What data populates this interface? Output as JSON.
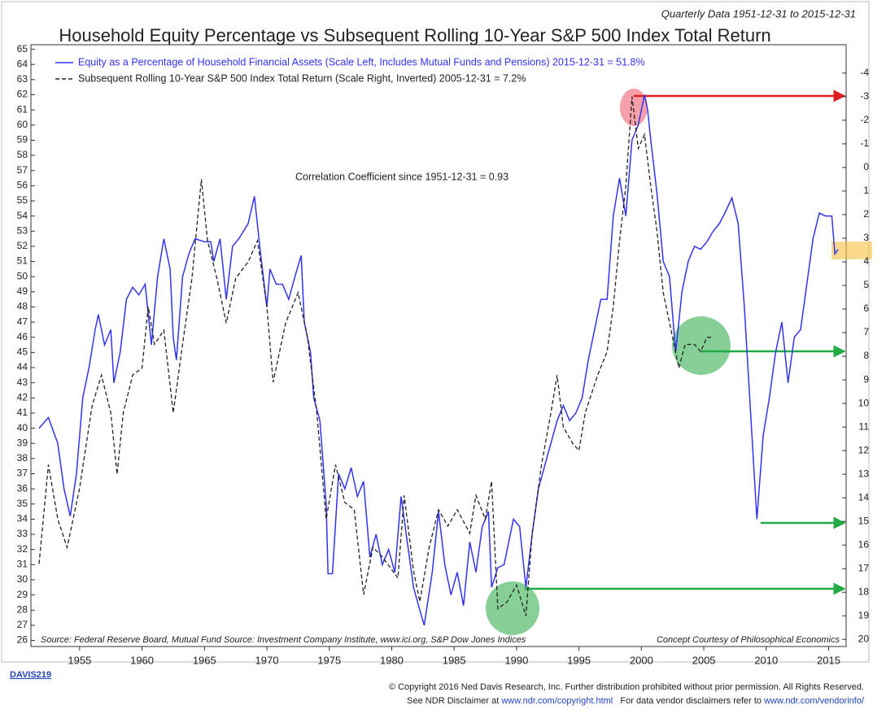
{
  "chart_data": {
    "type": "line",
    "subtitle": "Quarterly Data 1951-12-31 to 2015-12-31",
    "title": "Household Equity Percentage vs Subsequent Rolling 10-Year S&P 500 Index Total Return",
    "annotations": [
      "Correlation Coefficient since 1951-12-31 = 0.93"
    ],
    "source": "Source:  Federal Reserve Board, Mutual Fund Source: Investment Company Institute, www.ici.org, S&P Dow Jones Indices",
    "credit": "Concept Courtesy of Philosophical Economics",
    "chart_id": "DAVIS219",
    "copyright": [
      "© Copyright 2016 Ned Davis Research, Inc. Further distribution prohibited without prior permission. All Rights Reserved.",
      "See NDR Disclaimer at ",
      "www.ndr.com/copyright.html",
      "   For data vendor disclaimers refer to ",
      "www.ndr.com/vendorinfo/"
    ],
    "xlim": [
      1951.1,
      2016.4
    ],
    "xticks": [
      1955,
      1960,
      1965,
      1970,
      1975,
      1980,
      1985,
      1990,
      1995,
      2000,
      2005,
      2010,
      2015
    ],
    "ylim": [
      25.6,
      65.3
    ],
    "yticks": [
      26,
      27,
      28,
      29,
      30,
      31,
      32,
      33,
      34,
      35,
      36,
      37,
      38,
      39,
      40,
      41,
      42,
      43,
      44,
      45,
      46,
      47,
      48,
      49,
      50,
      51,
      52,
      53,
      54,
      55,
      56,
      57,
      58,
      59,
      60,
      61,
      62,
      63,
      64,
      65
    ],
    "y2lim": [
      20.3,
      -5.2
    ],
    "y2ticks": [
      -4,
      -3,
      -2,
      -1,
      0,
      1,
      2,
      3,
      4,
      5,
      6,
      7,
      8,
      9,
      10,
      11,
      12,
      13,
      14,
      15,
      16,
      17,
      18,
      19,
      20
    ],
    "series": [
      {
        "name": "Equity as a Percentage of Household Financial Assets (Scale Left, Includes Mutual Funds and Pensions) 2015-12-31 = 51.8%",
        "color": "#3333ee",
        "axis": "y",
        "x": [
          1951.75,
          1952.5,
          1953.25,
          1953.75,
          1954.25,
          1954.75,
          1955.25,
          1955.75,
          1956.25,
          1956.5,
          1957,
          1957.5,
          1957.75,
          1958.25,
          1958.75,
          1959.25,
          1959.75,
          1960.25,
          1960.75,
          1961.25,
          1961.75,
          1962.25,
          1962.5,
          1962.75,
          1963.25,
          1963.75,
          1964.25,
          1965,
          1965.5,
          1965.75,
          1966.25,
          1966.75,
          1967.25,
          1967.75,
          1968.5,
          1969,
          1969.5,
          1970,
          1970.25,
          1970.75,
          1971.25,
          1971.75,
          1972.25,
          1972.75,
          1973,
          1973.5,
          1973.75,
          1974.25,
          1974.75,
          1974.9,
          1975.25,
          1975.75,
          1976.25,
          1976.75,
          1977.25,
          1977.75,
          1978.25,
          1978.75,
          1979.25,
          1979.75,
          1980.25,
          1980.75,
          1981.25,
          1981.75,
          1982.25,
          1982.6,
          1983.25,
          1983.75,
          1984.25,
          1984.75,
          1985.25,
          1985.75,
          1986.25,
          1986.75,
          1987.25,
          1987.75,
          1988,
          1988.5,
          1989,
          1989.75,
          1990.25,
          1990.75,
          1991.25,
          1991.75,
          1992.25,
          1992.75,
          1993.25,
          1993.75,
          1994.25,
          1994.75,
          1995.25,
          1995.75,
          1996.25,
          1996.75,
          1997.25,
          1997.75,
          1998.25,
          1998.75,
          1999.25,
          1999.75,
          2000.25,
          2000.5,
          2000.75,
          2001.25,
          2001.75,
          2002.25,
          2002.75,
          2003.25,
          2003.75,
          2004.25,
          2004.75,
          2005.25,
          2005.75,
          2006.25,
          2006.75,
          2007.25,
          2007.75,
          2008.25,
          2008.75,
          2009.25,
          2009.75,
          2010.25,
          2010.75,
          2011.25,
          2011.75,
          2012.25,
          2012.75,
          2013.25,
          2013.75,
          2014.25,
          2014.75,
          2015.25,
          2015.5,
          2015.75
        ],
        "values": [
          40,
          40.7,
          39,
          36,
          34.2,
          37,
          42,
          44,
          46.5,
          47.5,
          45.5,
          46.5,
          43,
          45,
          48.5,
          49.3,
          48.8,
          49.5,
          45.5,
          50,
          52.5,
          50.5,
          46,
          44.5,
          50,
          51.5,
          52.5,
          52.3,
          52.3,
          51,
          52.5,
          48.5,
          52,
          52.5,
          53.5,
          55.3,
          51.5,
          48,
          50.5,
          49.5,
          49.5,
          48.5,
          50,
          51.4,
          47,
          45,
          42,
          40.5,
          35,
          30.4,
          30.4,
          37,
          36,
          37.4,
          35.5,
          36.5,
          31.5,
          33,
          31,
          32,
          30.5,
          35.5,
          32.5,
          29.5,
          28,
          27,
          30.5,
          34.5,
          31,
          29,
          30.5,
          28.3,
          32.5,
          30.5,
          33.5,
          34.5,
          29.5,
          30.8,
          31,
          34,
          33.5,
          29.5,
          33,
          36,
          37.5,
          39,
          40.5,
          41.5,
          40.5,
          41,
          42,
          44.5,
          46.5,
          48.5,
          48.5,
          54,
          56.5,
          54,
          59,
          60,
          62,
          61,
          59,
          55.5,
          51,
          50,
          45,
          49,
          51,
          52,
          51.8,
          52.3,
          53,
          53.5,
          54.3,
          55.2,
          53.5,
          48,
          41,
          34,
          39.5,
          42,
          45,
          47,
          43,
          46,
          46.5,
          49.5,
          52.5,
          54.2,
          54,
          54,
          51.5,
          51.8
        ]
      },
      {
        "name": "Subsequent Rolling 10-Year S&P 500 Index Total Return (Scale Right, Inverted) 2005-12-31 = 7.2%",
        "color": "#222222",
        "axis": "y2",
        "dashed": true,
        "x": [
          1951.75,
          1952.5,
          1953.25,
          1954,
          1955,
          1956,
          1956.75,
          1957.5,
          1958,
          1958.5,
          1959.25,
          1960,
          1960.5,
          1961,
          1961.75,
          1962.5,
          1963.25,
          1964,
          1964.75,
          1965.25,
          1966,
          1966.75,
          1967.5,
          1968.5,
          1969.25,
          1970,
          1970.5,
          1971.5,
          1972.5,
          1973.25,
          1974,
          1974.75,
          1975.5,
          1976.25,
          1977,
          1977.75,
          1978.5,
          1979.25,
          1980.5,
          1981,
          1981.75,
          1982.25,
          1983,
          1983.75,
          1984.5,
          1985.25,
          1986.25,
          1986.75,
          1987.5,
          1988,
          1988.5,
          1989.25,
          1990,
          1990.75,
          1991.25,
          1992,
          1992.75,
          1993.25,
          1993.75,
          1994.5,
          1995,
          1995.5,
          1996.5,
          1997.25,
          1997.75,
          1998.25,
          1998.75,
          1999.25,
          1999.75,
          2000.25,
          2000.75,
          2001.25,
          2001.75,
          2002.5,
          2003,
          2003.5,
          2004.25,
          2004.75,
          2005.25,
          2005.75
        ],
        "values": [
          16.8,
          12.6,
          14.9,
          16.1,
          13.6,
          10.1,
          8.8,
          10.4,
          13,
          10.4,
          8.8,
          8.5,
          5.9,
          7.5,
          6.9,
          10.4,
          7.5,
          4.7,
          0.5,
          3.1,
          4.7,
          6.6,
          4.7,
          4,
          3.1,
          5.9,
          9.1,
          6.6,
          5.3,
          7.2,
          10.4,
          14.9,
          12.6,
          14.2,
          14.5,
          18.1,
          16.1,
          16.5,
          17.4,
          13.9,
          17.1,
          18.4,
          16.1,
          14.5,
          15.2,
          14.5,
          15.5,
          13.9,
          14.9,
          13.3,
          18.7,
          18.4,
          17.7,
          19,
          15.5,
          12.6,
          10.4,
          8.8,
          11,
          11.7,
          12,
          10.4,
          8.8,
          7.8,
          5.9,
          3.1,
          0.8,
          -3,
          -0.8,
          -1.4,
          0.8,
          2.7,
          5.3,
          7.2,
          8.5,
          7.5,
          7.5,
          7.8,
          7.2,
          7.2
        ]
      }
    ]
  }
}
